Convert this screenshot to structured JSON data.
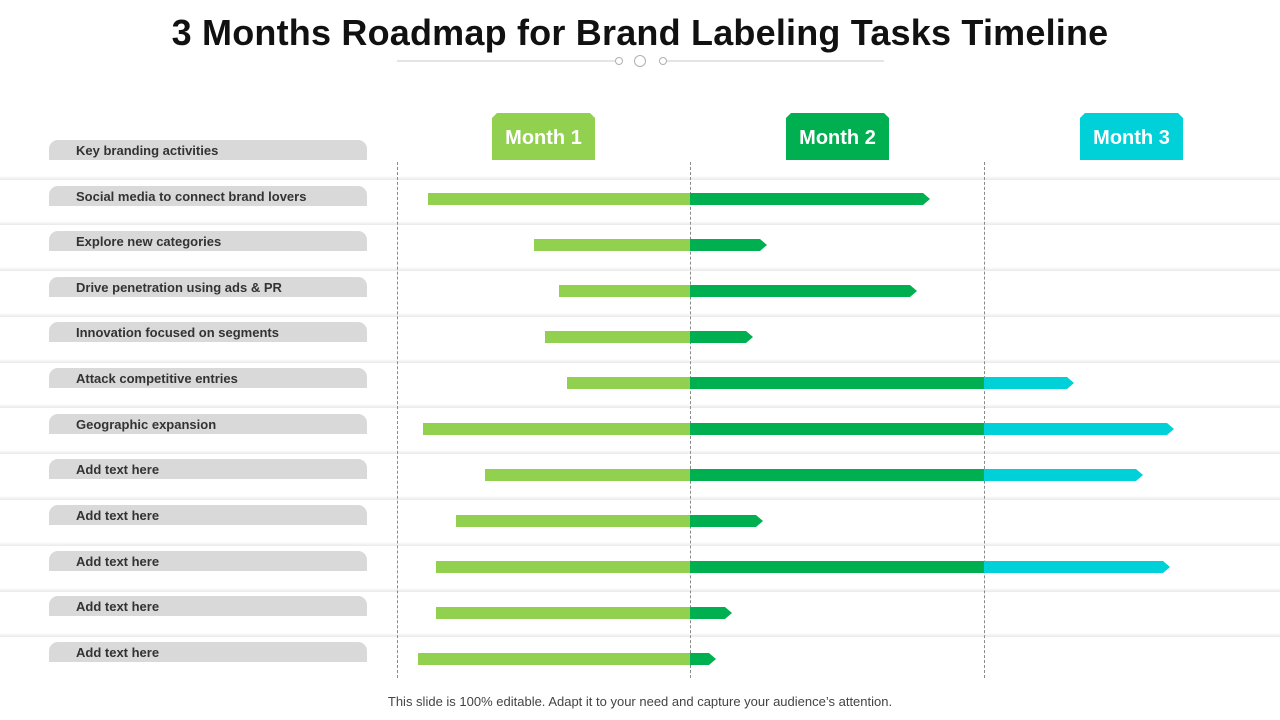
{
  "title": "3 Months Roadmap for Brand Labeling Tasks Timeline",
  "months": [
    {
      "label": "Month 1",
      "color": "#92d050"
    },
    {
      "label": "Month 2",
      "color": "#00b050"
    },
    {
      "label": "Month 3",
      "color": "#00d0d8"
    }
  ],
  "tasks": [
    {
      "label": "Key branding activities"
    },
    {
      "label": "Social media to connect brand lovers"
    },
    {
      "label": "Explore new categories"
    },
    {
      "label": "Drive penetration using ads & PR"
    },
    {
      "label": "Innovation focused on segments"
    },
    {
      "label": "Attack competitive entries"
    },
    {
      "label": "Geographic expansion"
    },
    {
      "label": "Add text here"
    },
    {
      "label": "Add text here"
    },
    {
      "label": "Add text here"
    },
    {
      "label": "Add text here"
    },
    {
      "label": "Add text here"
    }
  ],
  "footer": "This slide is 100% editable. Adapt it to your need and capture your audience’s attention."
}
